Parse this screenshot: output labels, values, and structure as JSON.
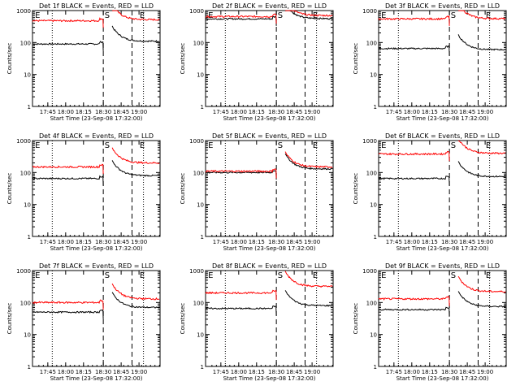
{
  "chart_data": [
    {
      "type": "line",
      "title": "Det 1f BLACK = Events, RED = LLD",
      "xlabel": "Start Time (23-Sep-08 17:32:00)",
      "ylabel": "Counts/sec",
      "yscale": "log",
      "ylim": [
        1,
        1000
      ],
      "xticks": [
        "17:45",
        "18:00",
        "18:15",
        "18:30",
        "18:45",
        "19:00"
      ],
      "yticks": [
        "1",
        "10",
        "100",
        "1000"
      ],
      "markers": [
        "E",
        "S",
        "E"
      ],
      "series": [
        {
          "name": "Events",
          "color": "#000000",
          "pre": 90,
          "post": 110
        },
        {
          "name": "LLD",
          "color": "#ff0000",
          "pre": 480,
          "post": 520
        }
      ]
    },
    {
      "type": "line",
      "title": "Det 2f BLACK = Events, RED = LLD",
      "xlabel": "Start Time (23-Sep-08 17:32:00)",
      "ylabel": "Counts/sec",
      "yscale": "log",
      "ylim": [
        1,
        1000
      ],
      "xticks": [
        "17:45",
        "18:00",
        "18:15",
        "18:30",
        "18:45",
        "19:00"
      ],
      "yticks": [
        "1",
        "10",
        "100",
        "1000"
      ],
      "markers": [
        "E",
        "S",
        "E"
      ],
      "series": [
        {
          "name": "Events",
          "color": "#000000",
          "pre": 550,
          "post": 560
        },
        {
          "name": "LLD",
          "color": "#ff0000",
          "pre": 650,
          "post": 700
        }
      ]
    },
    {
      "type": "line",
      "title": "Det 3f BLACK = Events, RED = LLD",
      "xlabel": "Start Time (23-Sep-08 17:32:00)",
      "ylabel": "Counts/sec",
      "yscale": "log",
      "ylim": [
        1,
        1000
      ],
      "xticks": [
        "17:45",
        "18:00",
        "18:15",
        "18:30",
        "18:45",
        "19:00"
      ],
      "yticks": [
        "1",
        "10",
        "100",
        "1000"
      ],
      "markers": [
        "E",
        "S",
        "E"
      ],
      "series": [
        {
          "name": "Events",
          "color": "#000000",
          "pre": 65,
          "post": 60
        },
        {
          "name": "LLD",
          "color": "#ff0000",
          "pre": 550,
          "post": 560
        }
      ]
    },
    {
      "type": "line",
      "title": "Det 4f BLACK = Events, RED = LLD",
      "xlabel": "Start Time (23-Sep-08 17:32:00)",
      "ylabel": "Counts/sec",
      "yscale": "log",
      "ylim": [
        1,
        1000
      ],
      "xticks": [
        "17:45",
        "18:00",
        "18:15",
        "18:30",
        "18:45",
        "19:00"
      ],
      "yticks": [
        "1",
        "10",
        "100",
        "1000"
      ],
      "markers": [
        "E",
        "S",
        "E"
      ],
      "series": [
        {
          "name": "Events",
          "color": "#000000",
          "pre": 65,
          "post": 80
        },
        {
          "name": "LLD",
          "color": "#ff0000",
          "pre": 150,
          "post": 200
        }
      ]
    },
    {
      "type": "line",
      "title": "Det 5f BLACK = Events, RED = LLD",
      "xlabel": "Start Time (23-Sep-08 17:32:00)",
      "ylabel": "Counts/sec",
      "yscale": "log",
      "ylim": [
        1,
        1000
      ],
      "xticks": [
        "17:45",
        "18:00",
        "18:15",
        "18:30",
        "18:45",
        "19:00"
      ],
      "yticks": [
        "1",
        "10",
        "100",
        "1000"
      ],
      "markers": [
        "E",
        "S",
        "E"
      ],
      "series": [
        {
          "name": "Events",
          "color": "#000000",
          "pre": 100,
          "post": 130
        },
        {
          "name": "LLD",
          "color": "#ff0000",
          "pre": 110,
          "post": 150
        }
      ]
    },
    {
      "type": "line",
      "title": "Det 6f BLACK = Events, RED = LLD",
      "xlabel": "Start Time (23-Sep-08 17:32:00)",
      "ylabel": "Counts/sec",
      "yscale": "log",
      "ylim": [
        1,
        1000
      ],
      "xticks": [
        "17:45",
        "18:00",
        "18:15",
        "18:30",
        "18:45",
        "19:00"
      ],
      "yticks": [
        "1",
        "10",
        "100",
        "1000"
      ],
      "markers": [
        "E",
        "S",
        "E"
      ],
      "series": [
        {
          "name": "Events",
          "color": "#000000",
          "pre": 65,
          "post": 75
        },
        {
          "name": "LLD",
          "color": "#ff0000",
          "pre": 380,
          "post": 400
        }
      ]
    },
    {
      "type": "line",
      "title": "Det 7f BLACK = Events, RED = LLD",
      "xlabel": "Start Time (23-Sep-08 17:32:00)",
      "ylabel": "Counts/sec",
      "yscale": "log",
      "ylim": [
        1,
        1000
      ],
      "xticks": [
        "17:45",
        "18:00",
        "18:15",
        "18:30",
        "18:45",
        "19:00"
      ],
      "yticks": [
        "1",
        "10",
        "100",
        "1000"
      ],
      "markers": [
        "E",
        "S",
        "E"
      ],
      "series": [
        {
          "name": "Events",
          "color": "#000000",
          "pre": 50,
          "post": 70
        },
        {
          "name": "LLD",
          "color": "#ff0000",
          "pre": 100,
          "post": 130
        }
      ]
    },
    {
      "type": "line",
      "title": "Det 8f BLACK = Events, RED = LLD",
      "xlabel": "Start Time (23-Sep-08 17:32:00)",
      "ylabel": "Counts/sec",
      "yscale": "log",
      "ylim": [
        1,
        1000
      ],
      "xticks": [
        "17:45",
        "18:00",
        "18:15",
        "18:30",
        "18:45",
        "19:00"
      ],
      "yticks": [
        "1",
        "10",
        "100",
        "1000"
      ],
      "markers": [
        "E",
        "S",
        "E"
      ],
      "series": [
        {
          "name": "Events",
          "color": "#000000",
          "pre": 65,
          "post": 80
        },
        {
          "name": "LLD",
          "color": "#ff0000",
          "pre": 200,
          "post": 320
        }
      ]
    },
    {
      "type": "line",
      "title": "Det 9f BLACK = Events, RED = LLD",
      "xlabel": "Start Time (23-Sep-08 17:32:00)",
      "ylabel": "Counts/sec",
      "yscale": "log",
      "ylim": [
        1,
        1000
      ],
      "xticks": [
        "17:45",
        "18:00",
        "18:15",
        "18:30",
        "18:45",
        "19:00"
      ],
      "yticks": [
        "1",
        "10",
        "100",
        "1000"
      ],
      "markers": [
        "E",
        "S",
        "E"
      ],
      "series": [
        {
          "name": "Events",
          "color": "#000000",
          "pre": 60,
          "post": 75
        },
        {
          "name": "LLD",
          "color": "#ff0000",
          "pre": 130,
          "post": 220
        }
      ]
    }
  ]
}
